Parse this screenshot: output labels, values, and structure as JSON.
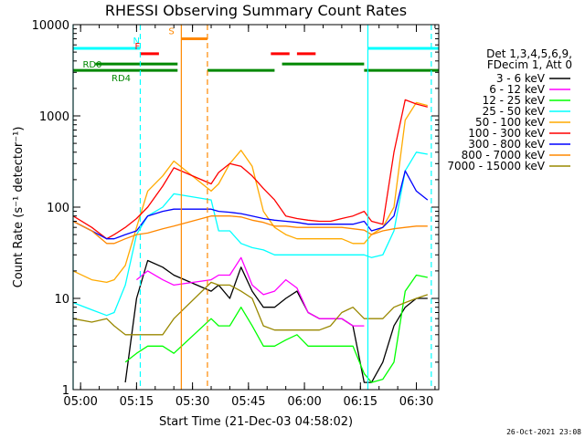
{
  "chart_data": {
    "type": "line",
    "title": "RHESSI Observing Summary Count Rates",
    "xlabel": "Start Time (21-Dec-03 04:58:02)",
    "ylabel": "Count Rate (s⁻¹ detector⁻¹)",
    "yscale": "log",
    "xlim": [
      "04:58",
      "06:36"
    ],
    "ylim": [
      1,
      10000
    ],
    "x_ticks": [
      "05:00",
      "05:15",
      "05:30",
      "05:45",
      "06:00",
      "06:15",
      "06:30"
    ],
    "y_ticks": [
      "1",
      "10",
      "100",
      "1000",
      "10000"
    ],
    "legend_header": [
      "Det 1,3,4,5,6,9,",
      "FDecim 1, Att 0"
    ],
    "legend_placement": "right",
    "footer_stamp": "26-Oct-2021 23:08",
    "state_bars": [
      {
        "label": "N",
        "color": "#00ffff",
        "level": 5500,
        "segments": [
          [
            "04:58",
            "05:16"
          ],
          [
            "06:17",
            "06:36"
          ]
        ]
      },
      {
        "label": "S",
        "color": "#ff8800",
        "level": 7000,
        "segments": [
          [
            "05:27",
            "05:34"
          ]
        ]
      },
      {
        "label": "F",
        "color": "#ff0000",
        "level": 4800,
        "segments": [
          [
            "05:16",
            "05:21"
          ],
          [
            "05:51",
            "05:56"
          ],
          [
            "05:58",
            "06:03"
          ]
        ]
      },
      {
        "label": "RD0",
        "color": "#008800",
        "level": 3700,
        "segments": [
          [
            "05:04",
            "05:26"
          ],
          [
            "05:54",
            "06:16"
          ]
        ]
      },
      {
        "label": "RD4",
        "color": "#008800",
        "level": 3150,
        "segments": [
          [
            "04:58",
            "05:26"
          ],
          [
            "05:34",
            "05:52"
          ],
          [
            "06:16",
            "06:36"
          ]
        ]
      }
    ],
    "vlines": [
      {
        "time": "04:58",
        "color": "#00ffff",
        "dash": false
      },
      {
        "time": "05:16",
        "color": "#00ffff",
        "dash": true
      },
      {
        "time": "05:27",
        "color": "#ff8800",
        "dash": false
      },
      {
        "time": "05:34",
        "color": "#ff8800",
        "dash": true
      },
      {
        "time": "06:17",
        "color": "#00ffff",
        "dash": false
      },
      {
        "time": "06:34",
        "color": "#00ffff",
        "dash": true
      }
    ],
    "x": [
      "04:58",
      "05:03",
      "05:07",
      "05:09",
      "05:12",
      "05:15",
      "05:18",
      "05:22",
      "05:25",
      "05:35",
      "05:37",
      "05:40",
      "05:43",
      "05:46",
      "05:49",
      "05:52",
      "05:55",
      "05:58",
      "06:01",
      "06:04",
      "06:07",
      "06:10",
      "06:13",
      "06:16",
      "06:18",
      "06:21",
      "06:24",
      "06:27",
      "06:30",
      "06:33"
    ],
    "series": [
      {
        "name": "3 - 6 keV",
        "color": "#000000",
        "values": [
          null,
          null,
          null,
          null,
          1.2,
          10,
          26,
          22,
          18,
          12,
          14,
          10,
          22,
          12,
          8,
          8,
          10,
          12,
          7,
          6,
          6,
          6,
          5,
          1.2,
          1.2,
          2,
          5,
          8,
          10,
          10
        ]
      },
      {
        "name": "6 - 12 keV",
        "color": "#ff00ff",
        "values": [
          null,
          null,
          null,
          null,
          null,
          16,
          20,
          16,
          14,
          16,
          18,
          18,
          28,
          14,
          11,
          12,
          16,
          13,
          7,
          6,
          6,
          6,
          5,
          5,
          null,
          null,
          null,
          null,
          null,
          null
        ]
      },
      {
        "name": "12 - 25 keV",
        "color": "#00ff00",
        "values": [
          null,
          null,
          null,
          null,
          2,
          2.5,
          3,
          3,
          2.5,
          6,
          5,
          5,
          8,
          5,
          3,
          3,
          3.5,
          4,
          3,
          3,
          3,
          3,
          3,
          1.5,
          1.2,
          1.3,
          2,
          12,
          18,
          17
        ]
      },
      {
        "name": "25 - 50 keV",
        "color": "#00ffff",
        "values": [
          9,
          7.5,
          6.5,
          7,
          14,
          50,
          80,
          100,
          140,
          120,
          55,
          55,
          40,
          36,
          34,
          30,
          30,
          30,
          30,
          30,
          30,
          30,
          30,
          30,
          28,
          30,
          55,
          250,
          400,
          380
        ]
      },
      {
        "name": "50 - 100 keV",
        "color": "#ffaa00",
        "values": [
          20,
          16,
          15,
          16,
          23,
          60,
          150,
          220,
          320,
          150,
          180,
          300,
          420,
          280,
          90,
          60,
          50,
          45,
          45,
          45,
          45,
          45,
          40,
          40,
          50,
          60,
          100,
          900,
          1400,
          1300
        ]
      },
      {
        "name": "100 - 300 keV",
        "color": "#ff0000",
        "values": [
          80,
          60,
          45,
          50,
          60,
          75,
          100,
          170,
          270,
          180,
          240,
          300,
          280,
          220,
          160,
          120,
          80,
          75,
          72,
          70,
          70,
          75,
          80,
          90,
          70,
          65,
          400,
          1500,
          1350,
          1250
        ]
      },
      {
        "name": "300 - 800 keV",
        "color": "#0000ff",
        "values": [
          70,
          55,
          45,
          45,
          50,
          55,
          80,
          90,
          95,
          95,
          90,
          88,
          85,
          80,
          75,
          72,
          70,
          68,
          65,
          65,
          65,
          65,
          65,
          70,
          55,
          60,
          80,
          250,
          150,
          120
        ]
      },
      {
        "name": "800 - 7000 keV",
        "color": "#ff8800",
        "values": [
          70,
          55,
          40,
          40,
          45,
          50,
          52,
          58,
          62,
          80,
          80,
          80,
          78,
          72,
          68,
          62,
          62,
          60,
          60,
          60,
          60,
          60,
          58,
          56,
          50,
          55,
          58,
          60,
          62,
          62
        ]
      },
      {
        "name": "7000 - 15000 keV",
        "color": "#998800",
        "values": [
          6,
          5.5,
          6,
          5,
          4,
          4,
          4,
          4,
          6,
          15,
          14,
          14,
          12,
          10,
          5,
          4.5,
          4.5,
          4.5,
          4.5,
          4.5,
          5,
          7,
          8,
          6,
          6,
          6,
          8,
          9,
          10,
          11
        ]
      }
    ]
  }
}
